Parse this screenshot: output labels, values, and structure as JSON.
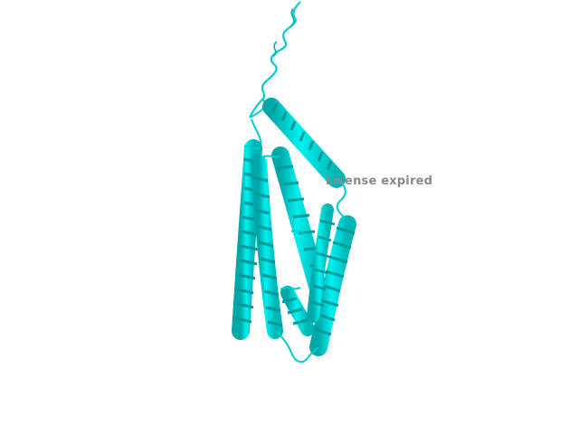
{
  "viewer": {
    "background_color": "#ffffff",
    "ribbon_color": "#00e5e5",
    "ribbon_shadow_color": "#00a8a8",
    "watermark_text": "License expired",
    "watermark_color": "#8a8a8a"
  }
}
